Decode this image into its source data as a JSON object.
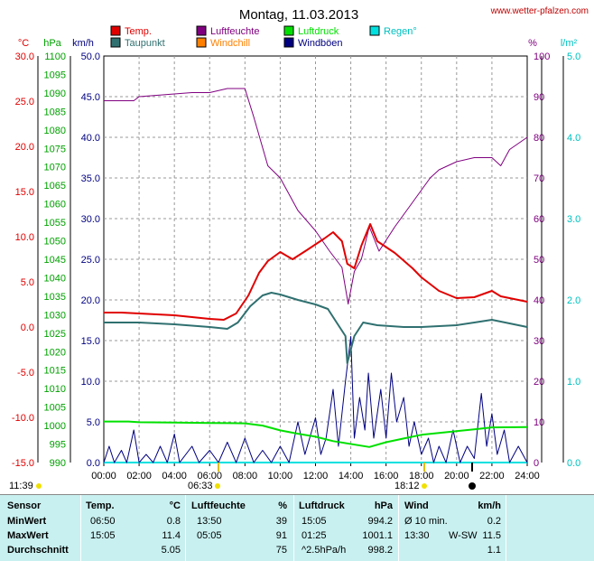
{
  "header": {
    "title": "Montag, 11.03.2013",
    "site": "www.wetter-pfalzen.com"
  },
  "colors": {
    "temp": "#e00000",
    "taupunkt": "#307070",
    "luftfeuchte": "#800080",
    "windchill": "#ff8000",
    "luftdruck": "#00e000",
    "windboeen": "#000080",
    "regen": "#00e0e0"
  },
  "legend": [
    {
      "key": "temp",
      "label": "Temp.",
      "color": "#e00000"
    },
    {
      "key": "luftfeuchte",
      "label": "Luftfeuchte",
      "color": "#800080"
    },
    {
      "key": "luftdruck",
      "label": "Luftdruck",
      "color": "#00e000"
    },
    {
      "key": "regen",
      "label": "Regen°",
      "color": "#00e0e0"
    },
    {
      "key": "taupunkt",
      "label": "Taupunkt",
      "color": "#307070"
    },
    {
      "key": "windchill",
      "label": "Windchill",
      "color": "#ff8000"
    },
    {
      "key": "windboeen",
      "label": "Windböen",
      "color": "#000080"
    }
  ],
  "axes": {
    "temp": {
      "unit": "°C",
      "ticks": [
        "30.0",
        "25.0",
        "20.0",
        "15.0",
        "10.0",
        "5.0",
        "0.0",
        "-5.0",
        "-10.0",
        "-15.0"
      ],
      "range": [
        -15,
        30
      ]
    },
    "pressure": {
      "unit": "hPa",
      "ticks": [
        "1100",
        "1095",
        "1090",
        "1085",
        "1080",
        "1075",
        "1070",
        "1065",
        "1060",
        "1055",
        "1050",
        "1045",
        "1040",
        "1035",
        "1030",
        "1025",
        "1020",
        "1015",
        "1010",
        "1005",
        "1000",
        "995",
        "990"
      ],
      "range": [
        990,
        1100
      ]
    },
    "wind": {
      "unit": "km/h",
      "ticks": [
        "50.0",
        "45.0",
        "40.0",
        "35.0",
        "30.0",
        "25.0",
        "20.0",
        "15.0",
        "10.0",
        "5.0",
        "0.0"
      ],
      "range": [
        0,
        50
      ]
    },
    "humidity": {
      "unit": "%",
      "ticks": [
        "100",
        "90",
        "80",
        "70",
        "60",
        "50",
        "40",
        "30",
        "20",
        "10",
        "0"
      ],
      "range": [
        0,
        100
      ]
    },
    "rain": {
      "unit": "l/m²",
      "ticks": [
        "5.0",
        "4.0",
        "3.0",
        "2.0",
        "1.0",
        "0.0"
      ],
      "range": [
        0,
        5
      ]
    },
    "x": {
      "ticks": [
        "00:00",
        "02:00",
        "04:00",
        "06:00",
        "08:00",
        "10:00",
        "12:00",
        "14:00",
        "16:00",
        "18:00",
        "20:00",
        "22:00",
        "24:00"
      ],
      "range": [
        0,
        24
      ]
    }
  },
  "sun": {
    "sunrise_left": "11:39",
    "sunrise": "06:33",
    "sunset": "18:12"
  },
  "chart_data": {
    "type": "line",
    "x_unit": "hours",
    "grid": true,
    "series": [
      {
        "name": "Temp.",
        "axis": "temp",
        "points": [
          [
            0,
            1.6
          ],
          [
            1,
            1.6
          ],
          [
            2,
            1.5
          ],
          [
            3,
            1.4
          ],
          [
            4,
            1.3
          ],
          [
            5,
            1.1
          ],
          [
            6,
            0.9
          ],
          [
            6.8,
            0.8
          ],
          [
            7.5,
            1.5
          ],
          [
            8.2,
            3.5
          ],
          [
            8.8,
            6
          ],
          [
            9.3,
            7.3
          ],
          [
            10,
            8.3
          ],
          [
            10.7,
            7.5
          ],
          [
            11.5,
            8.5
          ],
          [
            12.5,
            9.8
          ],
          [
            13,
            10.5
          ],
          [
            13.5,
            9.5
          ],
          [
            13.8,
            7.0
          ],
          [
            14.2,
            6.5
          ],
          [
            14.6,
            9.0
          ],
          [
            15.1,
            11.4
          ],
          [
            15.5,
            9.5
          ],
          [
            16.5,
            8.2
          ],
          [
            17.5,
            6.5
          ],
          [
            18,
            5.5
          ],
          [
            19,
            4.0
          ],
          [
            20,
            3.2
          ],
          [
            21,
            3.3
          ],
          [
            22,
            4.0
          ],
          [
            22.5,
            3.4
          ],
          [
            23.5,
            3.0
          ],
          [
            24,
            2.8
          ]
        ]
      },
      {
        "name": "Taupunkt",
        "axis": "temp",
        "points": [
          [
            0,
            0.5
          ],
          [
            2,
            0.5
          ],
          [
            4,
            0.3
          ],
          [
            6,
            0.0
          ],
          [
            7,
            -0.2
          ],
          [
            7.6,
            0.5
          ],
          [
            8.3,
            2.3
          ],
          [
            9,
            3.5
          ],
          [
            9.5,
            3.8
          ],
          [
            10,
            3.6
          ],
          [
            11,
            3.0
          ],
          [
            12,
            2.5
          ],
          [
            12.7,
            2.0
          ],
          [
            13.2,
            0.5
          ],
          [
            13.7,
            -1.0
          ],
          [
            13.8,
            -4.0
          ],
          [
            14.2,
            -1.0
          ],
          [
            14.7,
            0.5
          ],
          [
            15.5,
            0.2
          ],
          [
            17,
            0.0
          ],
          [
            18,
            0.0
          ],
          [
            20,
            0.2
          ],
          [
            21,
            0.5
          ],
          [
            22,
            0.8
          ],
          [
            23,
            0.4
          ],
          [
            24,
            0.0
          ]
        ]
      },
      {
        "name": "Luftfeuchte",
        "axis": "humidity",
        "points": [
          [
            0,
            89
          ],
          [
            1.7,
            89
          ],
          [
            2,
            90
          ],
          [
            5,
            91
          ],
          [
            6,
            91
          ],
          [
            7,
            92
          ],
          [
            8,
            92
          ],
          [
            8.5,
            85
          ],
          [
            9.3,
            73
          ],
          [
            10,
            70
          ],
          [
            11,
            62
          ],
          [
            12,
            57
          ],
          [
            12.8,
            52
          ],
          [
            13.5,
            48
          ],
          [
            13.85,
            39
          ],
          [
            14.2,
            47
          ],
          [
            14.6,
            50
          ],
          [
            15.05,
            58
          ],
          [
            15.6,
            52
          ],
          [
            16.5,
            58
          ],
          [
            17.5,
            64
          ],
          [
            18.5,
            70
          ],
          [
            19,
            72
          ],
          [
            20,
            74
          ],
          [
            21,
            75
          ],
          [
            22,
            75
          ],
          [
            22.5,
            73
          ],
          [
            23,
            77
          ],
          [
            24,
            80
          ]
        ]
      },
      {
        "name": "Luftdruck",
        "axis": "pressure",
        "points": [
          [
            0,
            1001.1
          ],
          [
            1.4,
            1001.1
          ],
          [
            2,
            1000.9
          ],
          [
            4,
            1000.8
          ],
          [
            6,
            1000.7
          ],
          [
            8,
            1000.6
          ],
          [
            9,
            1000.0
          ],
          [
            10,
            998.7
          ],
          [
            11,
            997.8
          ],
          [
            12,
            997.0
          ],
          [
            13,
            995.8
          ],
          [
            15.05,
            994.2
          ],
          [
            16,
            995.5
          ],
          [
            17,
            996.5
          ],
          [
            18,
            997.5
          ],
          [
            19,
            998.0
          ],
          [
            20,
            998.5
          ],
          [
            21,
            999.0
          ],
          [
            22,
            999.5
          ],
          [
            24,
            999.6
          ]
        ]
      },
      {
        "name": "Windböen",
        "axis": "wind",
        "points": [
          [
            0,
            0
          ],
          [
            0.3,
            2
          ],
          [
            0.6,
            0
          ],
          [
            1,
            1.5
          ],
          [
            1.3,
            0
          ],
          [
            1.7,
            4
          ],
          [
            2,
            0
          ],
          [
            2.4,
            1
          ],
          [
            2.8,
            0
          ],
          [
            3.2,
            2
          ],
          [
            3.6,
            0
          ],
          [
            4,
            3.5
          ],
          [
            4.3,
            0
          ],
          [
            5,
            2
          ],
          [
            5.4,
            0
          ],
          [
            6,
            1.5
          ],
          [
            6.5,
            0
          ],
          [
            7,
            2.5
          ],
          [
            7.5,
            0
          ],
          [
            8,
            3
          ],
          [
            8.5,
            0
          ],
          [
            9,
            1.5
          ],
          [
            9.5,
            0
          ],
          [
            10,
            2
          ],
          [
            10.5,
            0
          ],
          [
            11,
            5
          ],
          [
            11.4,
            1
          ],
          [
            12,
            5.5
          ],
          [
            12.3,
            1
          ],
          [
            12.6,
            3
          ],
          [
            13,
            9
          ],
          [
            13.3,
            2
          ],
          [
            13.5,
            6
          ],
          [
            13.7,
            10
          ],
          [
            14,
            15.5
          ],
          [
            14.2,
            3
          ],
          [
            14.5,
            8
          ],
          [
            14.8,
            4
          ],
          [
            15,
            11
          ],
          [
            15.3,
            3
          ],
          [
            15.7,
            9
          ],
          [
            16,
            3
          ],
          [
            16.3,
            11
          ],
          [
            16.6,
            5
          ],
          [
            17,
            8
          ],
          [
            17.3,
            2
          ],
          [
            17.6,
            5
          ],
          [
            18,
            1
          ],
          [
            18.4,
            3
          ],
          [
            18.7,
            0
          ],
          [
            19,
            2
          ],
          [
            19.4,
            0
          ],
          [
            19.8,
            4
          ],
          [
            20.2,
            0
          ],
          [
            20.6,
            2
          ],
          [
            21,
            0.5
          ],
          [
            21.4,
            8.5
          ],
          [
            21.7,
            2
          ],
          [
            22,
            6
          ],
          [
            22.3,
            1
          ],
          [
            22.7,
            4
          ],
          [
            23,
            0
          ],
          [
            23.5,
            2
          ],
          [
            24,
            0
          ]
        ]
      },
      {
        "name": "Regen°",
        "axis": "rain",
        "points": [
          [
            0,
            0
          ],
          [
            24,
            0
          ]
        ]
      }
    ]
  },
  "stats": {
    "headers": {
      "sensor": "Sensor",
      "temp": "Temp.",
      "temp_unit": "°C",
      "hum": "Luftfeuchte",
      "hum_unit": "%",
      "press": "Luftdruck",
      "press_unit": "hPa",
      "wind": "Wind",
      "wind_unit": "km/h"
    },
    "rows": [
      {
        "label": "MinWert",
        "temp_time": "06:50",
        "temp_val": "0.8",
        "hum_time": "13:50",
        "hum_val": "39",
        "press_time": "15:05",
        "press_val": "994.2",
        "wind_label": "Ø 10 min.",
        "wind_val": "0.2"
      },
      {
        "label": "MaxWert",
        "temp_time": "15:05",
        "temp_val": "11.4",
        "hum_time": "05:05",
        "hum_val": "91",
        "press_time": "01:25",
        "press_val": "1001.1",
        "wind_label": "13:30",
        "wind_dir": "W-SW",
        "wind_val": "11.5"
      },
      {
        "label": "Durchschnitt",
        "temp_time": "",
        "temp_val": "5.05",
        "hum_time": "",
        "hum_val": "75",
        "press_time": "^2.5hPa/h",
        "press_val": "998.2",
        "wind_label": "",
        "wind_val": "1.1"
      }
    ]
  }
}
